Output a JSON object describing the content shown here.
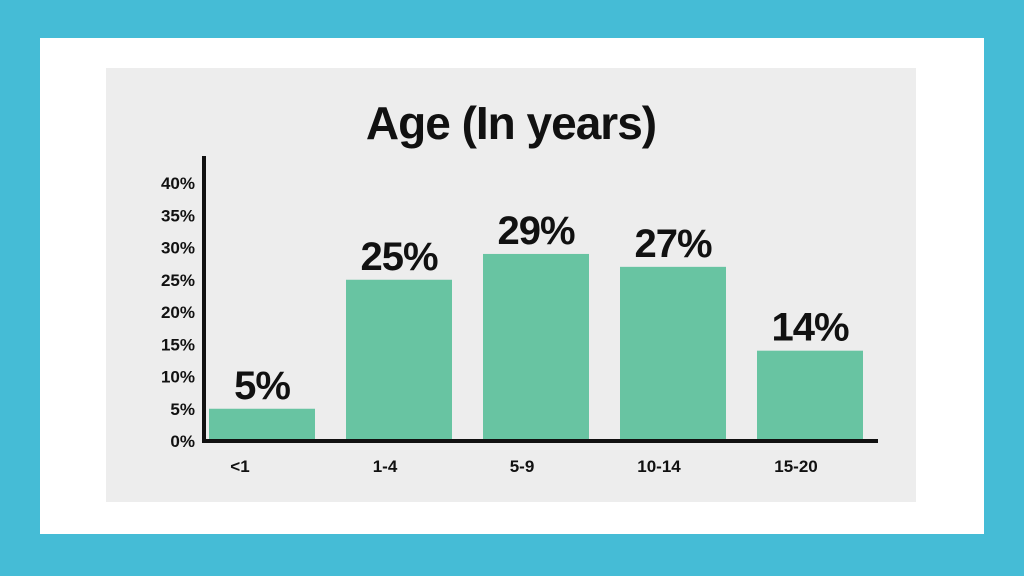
{
  "colors": {
    "frame": "#45bcd6",
    "bar": "#68c4a2",
    "axis": "#111111"
  },
  "chart_data": {
    "type": "bar",
    "title": "Age (In years)",
    "categories": [
      "<1",
      "1-4",
      "5-9",
      "10-14",
      "15-20"
    ],
    "values": [
      5,
      25,
      29,
      27,
      14
    ],
    "value_labels": [
      "5%",
      "25%",
      "29%",
      "27%",
      "14%"
    ],
    "yticks": [
      "0%",
      "5%",
      "10%",
      "15%",
      "20%",
      "25%",
      "30%",
      "35%",
      "40%"
    ],
    "ylim": [
      0,
      40
    ],
    "xlabel": "",
    "ylabel": "",
    "grid": false,
    "legend": "none"
  }
}
